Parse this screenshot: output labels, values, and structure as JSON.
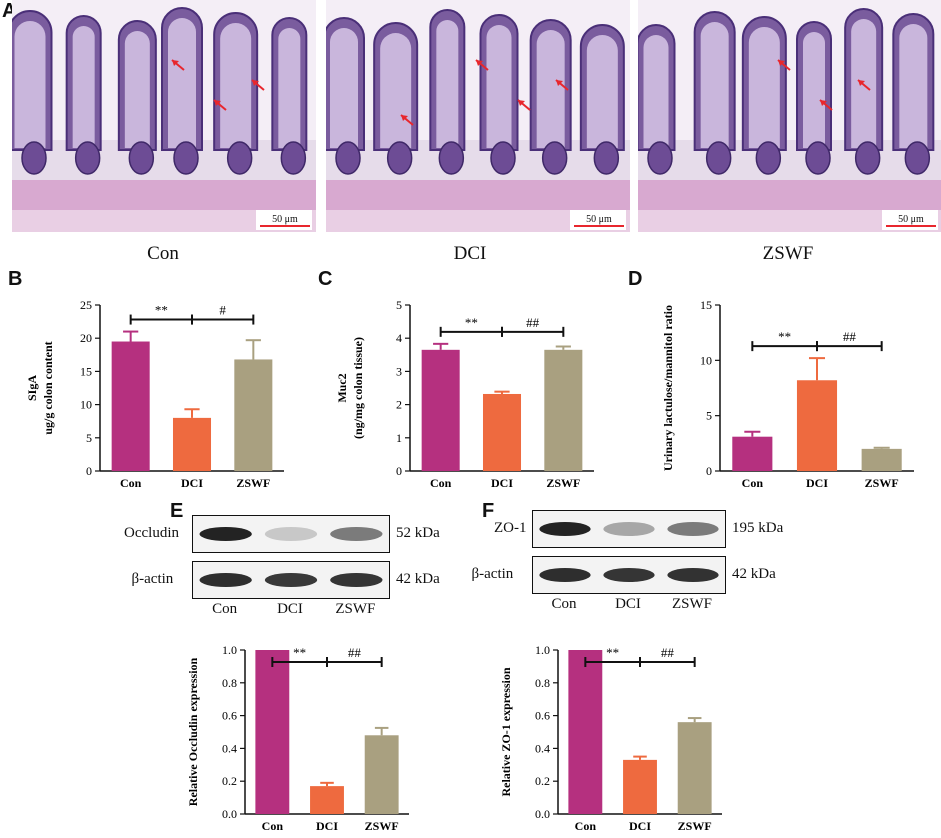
{
  "panels": {
    "A": "A",
    "B": "B",
    "C": "C",
    "D": "D",
    "E": "E",
    "F": "F"
  },
  "histology": {
    "images": [
      {
        "caption": "Con",
        "scale_bar": "50 μm"
      },
      {
        "caption": "DCI",
        "scale_bar": "50 μm"
      },
      {
        "caption": "ZSWF",
        "scale_bar": "50 μm"
      }
    ],
    "arrow_color": "#e8262d"
  },
  "colors": {
    "Con": "#b5307f",
    "DCI": "#ee6a3f",
    "ZSWF": "#a9a080"
  },
  "blots": {
    "E": {
      "rows": [
        {
          "label": "Occludin",
          "kda": "52 kDa",
          "intensity": [
            1.0,
            0.25,
            0.6
          ]
        },
        {
          "label": "β-actin",
          "kda": "42 kDa",
          "intensity": [
            0.95,
            0.9,
            0.92
          ]
        }
      ],
      "lanes": [
        "Con",
        "DCI",
        "ZSWF"
      ]
    },
    "F": {
      "rows": [
        {
          "label": "ZO-1",
          "kda": "195 kDa",
          "intensity": [
            1.0,
            0.4,
            0.6
          ]
        },
        {
          "label": "β-actin",
          "kda": "42 kDa",
          "intensity": [
            0.95,
            0.92,
            0.93
          ]
        }
      ],
      "lanes": [
        "Con",
        "DCI",
        "ZSWF"
      ]
    }
  },
  "chart_data": [
    {
      "id": "B",
      "type": "bar",
      "categories": [
        "Con",
        "DCI",
        "ZSWF"
      ],
      "values": [
        19.5,
        8.0,
        16.8
      ],
      "errors": [
        1.5,
        1.3,
        2.9
      ],
      "ylabel_lines": [
        "SIgA",
        "ug/g colon content"
      ],
      "ylim": [
        0,
        25
      ],
      "yticks": [
        0,
        5,
        10,
        15,
        20,
        25
      ],
      "sig": [
        {
          "from": 0,
          "to": 1,
          "label": "**"
        },
        {
          "from": 1,
          "to": 2,
          "label": "#"
        }
      ]
    },
    {
      "id": "C",
      "type": "bar",
      "categories": [
        "Con",
        "DCI",
        "ZSWF"
      ],
      "values": [
        3.65,
        2.32,
        3.65
      ],
      "errors": [
        0.18,
        0.07,
        0.1
      ],
      "ylabel_lines": [
        "Muc2",
        "(ng/mg colon tissue)"
      ],
      "ylim": [
        0,
        5
      ],
      "yticks": [
        0,
        1,
        2,
        3,
        4,
        5
      ],
      "sig": [
        {
          "from": 0,
          "to": 1,
          "label": "**"
        },
        {
          "from": 1,
          "to": 2,
          "label": "##"
        }
      ]
    },
    {
      "id": "D",
      "type": "bar",
      "categories": [
        "Con",
        "DCI",
        "ZSWF"
      ],
      "values": [
        3.1,
        8.2,
        2.0
      ],
      "errors": [
        0.45,
        2.0,
        0.1
      ],
      "ylabel_lines": [
        "Urinary lactulose/mannitol ratio"
      ],
      "ylim": [
        0,
        15
      ],
      "yticks": [
        0,
        5,
        10,
        15
      ],
      "sig": [
        {
          "from": 0,
          "to": 1,
          "label": "**"
        },
        {
          "from": 1,
          "to": 2,
          "label": "##"
        }
      ]
    },
    {
      "id": "E",
      "type": "bar",
      "categories": [
        "Con",
        "DCI",
        "ZSWF"
      ],
      "values": [
        1.0,
        0.17,
        0.48
      ],
      "errors": [
        0.0,
        0.02,
        0.045
      ],
      "ylabel_lines": [
        "Relative Occludin expression"
      ],
      "ylim": [
        0,
        1.0
      ],
      "yticks": [
        0.0,
        0.2,
        0.4,
        0.6,
        0.8,
        1.0
      ],
      "ytick_labels": [
        "0.0",
        "0.2",
        "0.4",
        "0.6",
        "0.8",
        "1.0"
      ],
      "sig": [
        {
          "from": 0,
          "to": 1,
          "label": "**"
        },
        {
          "from": 1,
          "to": 2,
          "label": "##"
        }
      ]
    },
    {
      "id": "F",
      "type": "bar",
      "categories": [
        "Con",
        "DCI",
        "ZSWF"
      ],
      "values": [
        1.0,
        0.33,
        0.56
      ],
      "errors": [
        0.0,
        0.02,
        0.025
      ],
      "ylabel_lines": [
        "Relative ZO-1 expression"
      ],
      "ylim": [
        0,
        1.0
      ],
      "yticks": [
        0.0,
        0.2,
        0.4,
        0.6,
        0.8,
        1.0
      ],
      "ytick_labels": [
        "0.0",
        "0.2",
        "0.4",
        "0.6",
        "0.8",
        "1.0"
      ],
      "sig": [
        {
          "from": 0,
          "to": 1,
          "label": "**"
        },
        {
          "from": 1,
          "to": 2,
          "label": "##"
        }
      ]
    }
  ]
}
